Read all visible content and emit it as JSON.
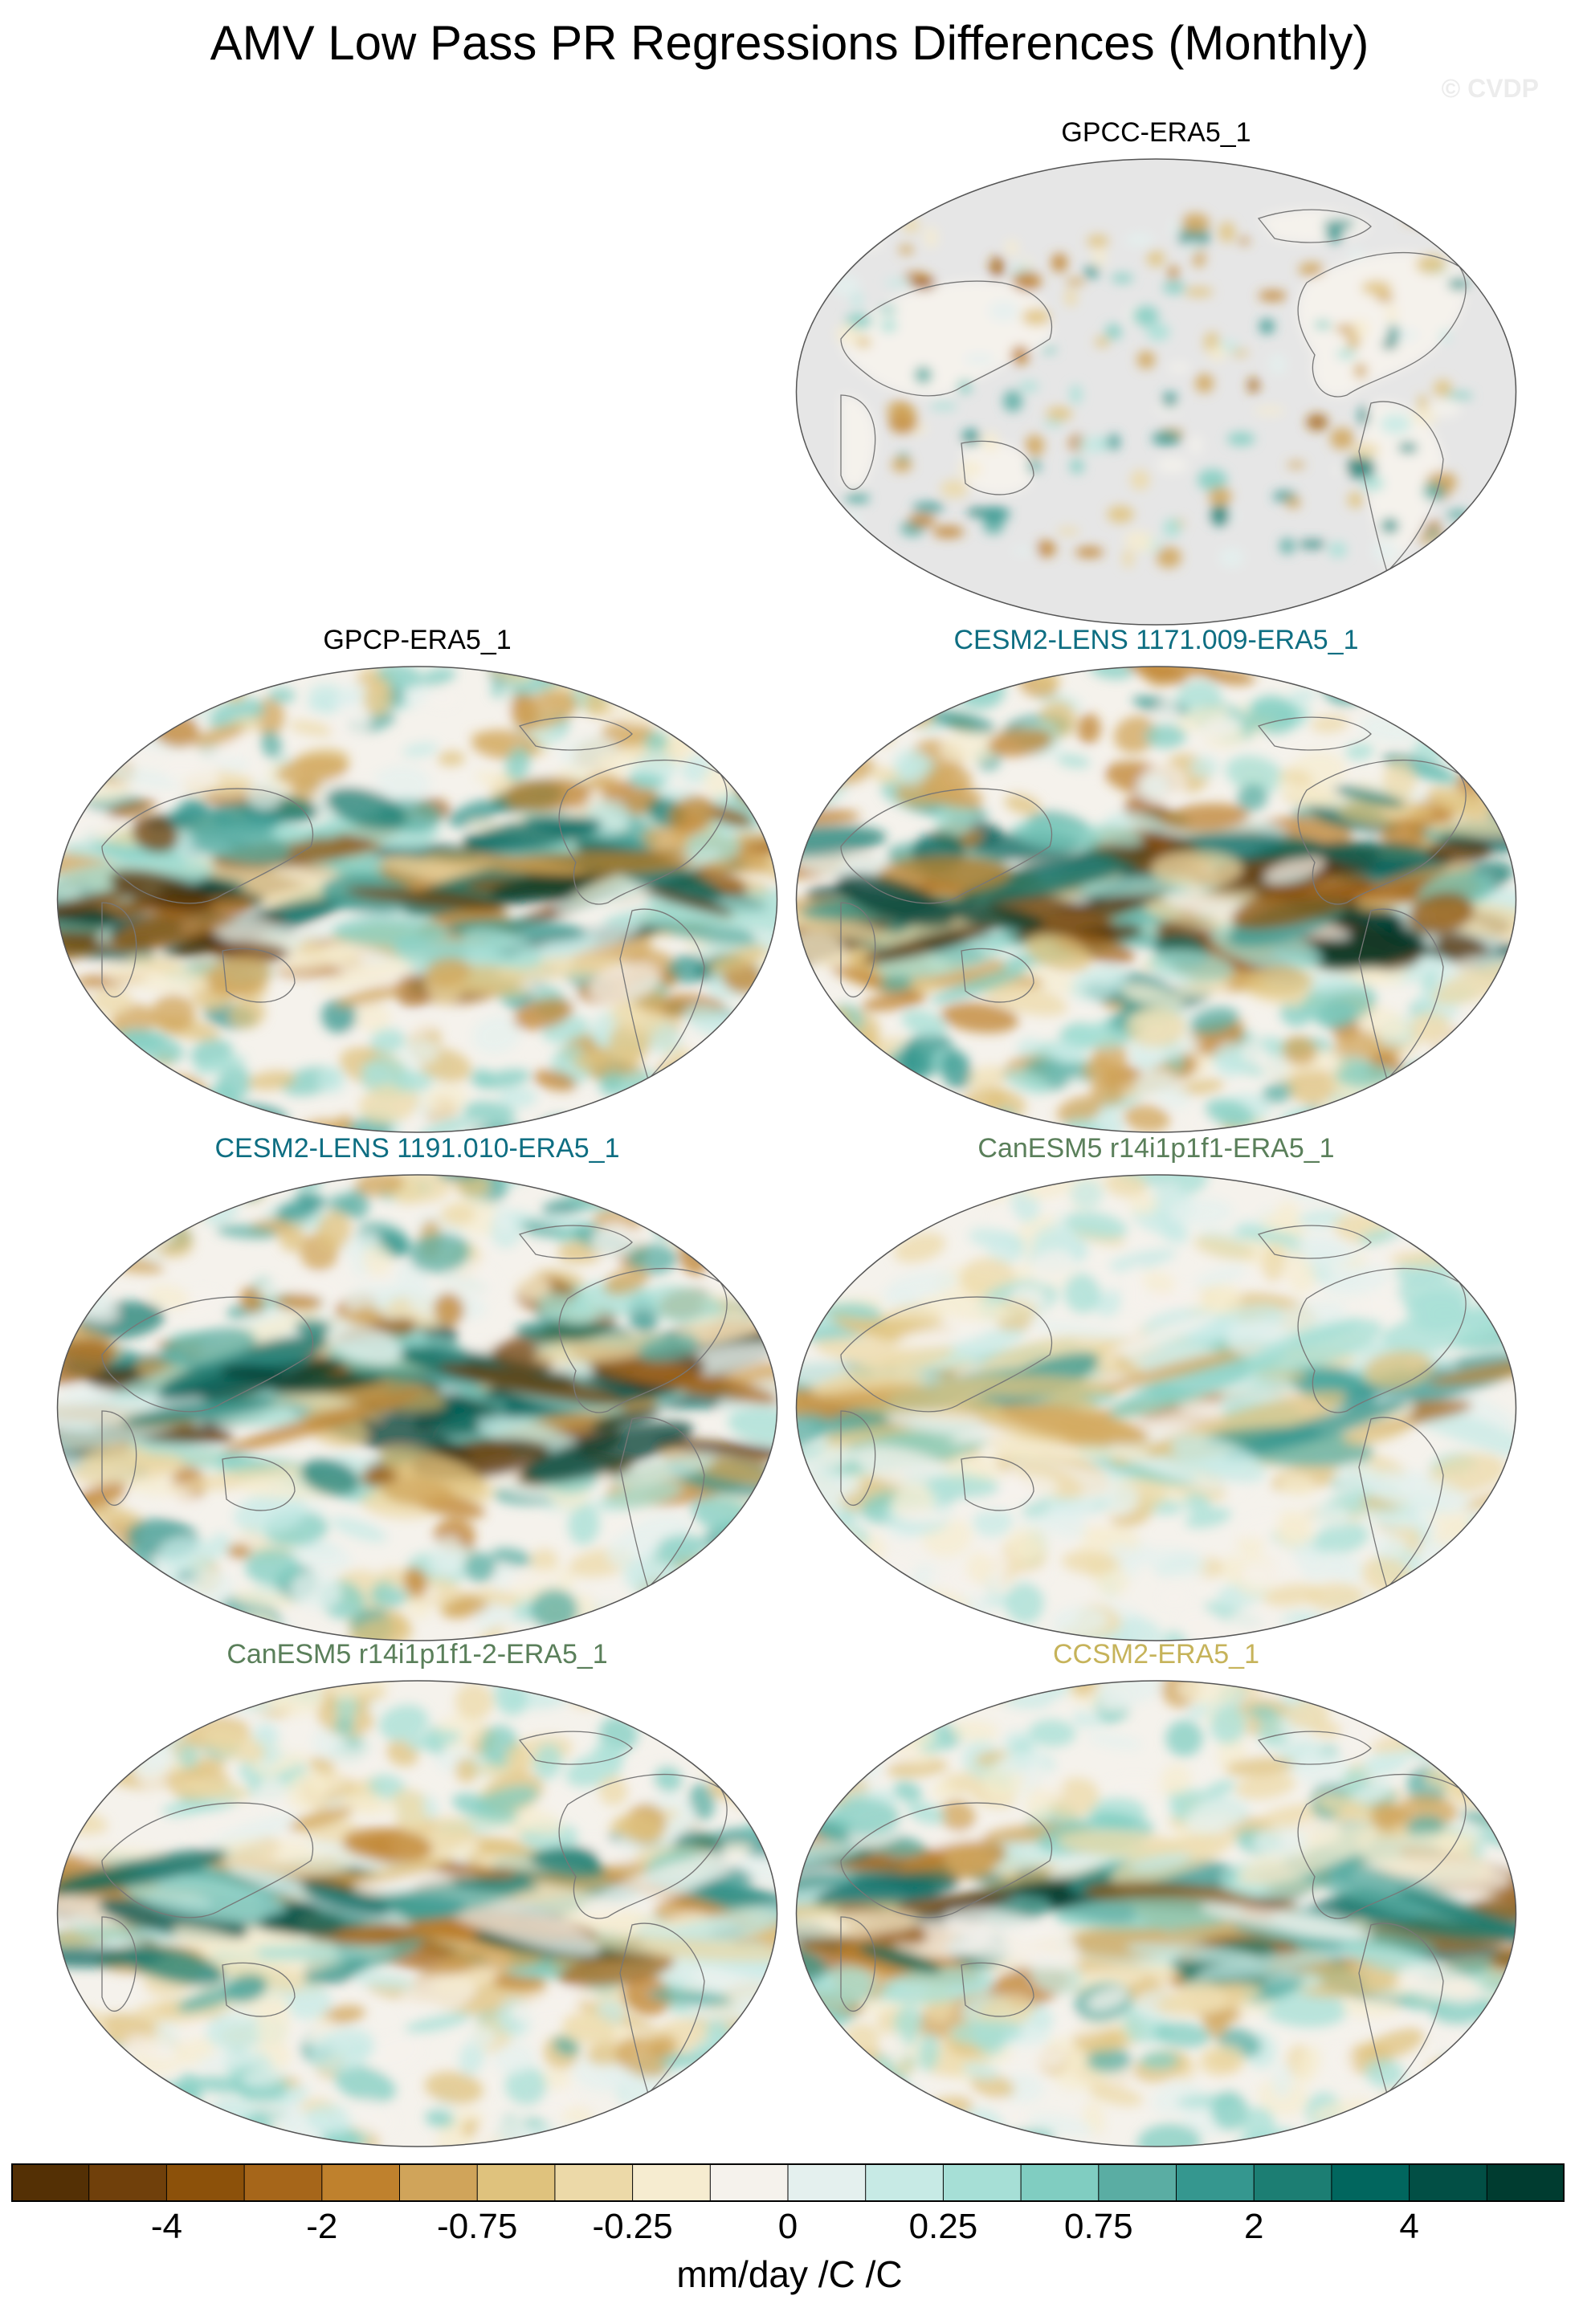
{
  "title": "AMV Low Pass PR Regressions Differences (Monthly)",
  "credit": "© CVDP",
  "panels": [
    {
      "label": "GPCC-ERA5_1",
      "color": "#000000",
      "style": "land-only"
    },
    {
      "label": "GPCP-ERA5_1",
      "color": "#000000",
      "style": "strong"
    },
    {
      "label": "CESM2-LENS 1171.009-ERA5_1",
      "color": "#0e6e82",
      "style": "strong"
    },
    {
      "label": "CESM2-LENS 1191.010-ERA5_1",
      "color": "#0e6e82",
      "style": "strong"
    },
    {
      "label": "CanESM5 r14i1p1f1-ERA5_1",
      "color": "#5a7f5a",
      "style": "weak"
    },
    {
      "label": "CanESM5 r14i1p1f1-2-ERA5_1",
      "color": "#5a7f5a",
      "style": "medium"
    },
    {
      "label": "CCSM2-ERA5_1",
      "color": "#c6b35a",
      "style": "medium"
    }
  ],
  "colorbar": {
    "colors": [
      "#543005",
      "#70400b",
      "#8c510a",
      "#a6661a",
      "#bf812d",
      "#d0a45a",
      "#dfc27d",
      "#ecd9a8",
      "#f6ecd0",
      "#f5f2ec",
      "#e4f0ee",
      "#c7eae5",
      "#a6dfd6",
      "#80cdc1",
      "#5aada3",
      "#35978f",
      "#1c7e73",
      "#01665e",
      "#024f45",
      "#003c30"
    ],
    "labels": [
      {
        "text": "-4",
        "boundary": 2
      },
      {
        "text": "-2",
        "boundary": 4
      },
      {
        "text": "-0.75",
        "boundary": 6
      },
      {
        "text": "-0.25",
        "boundary": 8
      },
      {
        "text": "0",
        "boundary": 10
      },
      {
        "text": "0.25",
        "boundary": 12
      },
      {
        "text": "0.75",
        "boundary": 14
      },
      {
        "text": "2",
        "boundary": 16
      },
      {
        "text": "4",
        "boundary": 18
      }
    ],
    "units": "mm/day /C /C"
  }
}
